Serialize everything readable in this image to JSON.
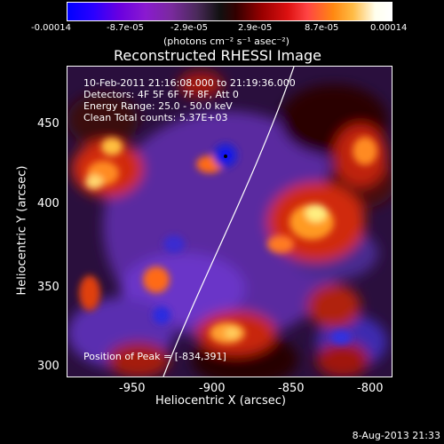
{
  "colorbar": {
    "tick_labels": [
      "-0.00014",
      "-8.7e-05",
      "-2.9e-05",
      "2.9e-05",
      "8.7e-05",
      "0.00014"
    ],
    "units": "(photons cm⁻² s⁻¹ asec⁻²)"
  },
  "title": "Reconstructed RHESSI Image",
  "info": {
    "time_range": "10-Feb-2011 21:16:08.000 to 21:19:36.000",
    "detectors": "Detectors: 4F 5F 6F 7F 8F, Att 0",
    "energy": "Energy Range: 25.0 - 50.0 keV",
    "clean": "Clean     Total counts: 5.37E+03"
  },
  "peak": "Position of Peak = [-834,391]",
  "axes": {
    "x_label": "Heliocentric X (arcsec)",
    "y_label": "Heliocentric Y (arcsec)",
    "x_ticks": [
      "-950",
      "-900",
      "-850",
      "-800"
    ],
    "y_ticks": [
      "450",
      "400",
      "350",
      "300"
    ]
  },
  "date_stamp": "8-Aug-2013 21:33"
}
